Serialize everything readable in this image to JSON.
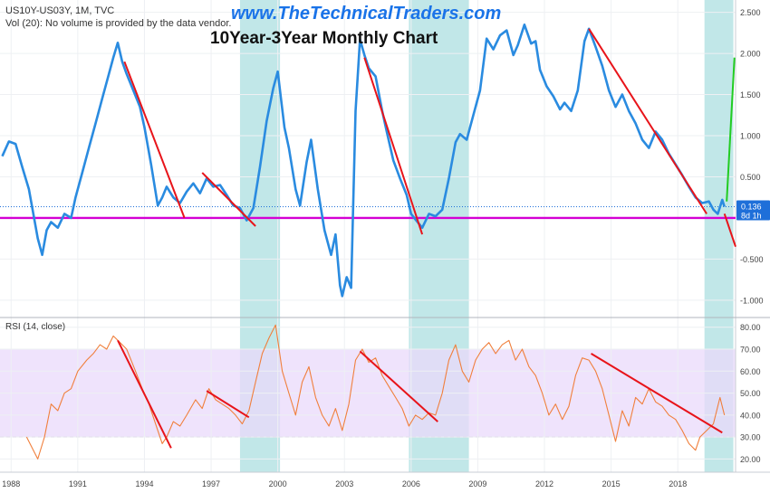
{
  "header": {
    "symbol_line": "US10Y-US03Y, 1M, TVC",
    "vol_line": "Vol (20): No volume is provided by the data vendor.",
    "website": "www.TheTechnicalTraders.com",
    "chart_title": "10Year-3Year Monthly Chart",
    "rsi_label": "RSI (14, close)"
  },
  "price_tag": {
    "value": "0.136",
    "countdown": "8d 1h"
  },
  "colors": {
    "spread_line": "#2a8be0",
    "rsi_line": "#f07f3c",
    "shade": "#9fdadb",
    "rsi_band": "#e9d9fb",
    "trend": "#e8141a",
    "projection_up": "#22cc22",
    "support": "#d400d4",
    "tag_bg": "#1e6fd9"
  },
  "chart_data": [
    {
      "type": "line",
      "name": "spread",
      "x_axis": {
        "min": 1987.5,
        "max": 2020.6,
        "ticks": [
          1988,
          1991,
          1994,
          1997,
          2000,
          2003,
          2006,
          2009,
          2012,
          2015,
          2018
        ]
      },
      "x_tick_labels": [
        "1988",
        "1991",
        "1994",
        "1997",
        "2000",
        "2003",
        "2006",
        "2009",
        "2012",
        "2015",
        "2018"
      ],
      "y_axis": {
        "min": -1.2,
        "max": 2.65,
        "ticks": [
          2.5,
          2.0,
          1.5,
          1.0,
          0.5,
          0.0,
          -0.5,
          -1.0
        ]
      },
      "y_tick_labels": [
        "2.500",
        "2.000",
        "1.500",
        "1.000",
        "0.500",
        "",
        "-0.500",
        "-1.000"
      ],
      "points": [
        [
          1987.6,
          0.75
        ],
        [
          1987.9,
          0.93
        ],
        [
          1988.2,
          0.9
        ],
        [
          1988.5,
          0.62
        ],
        [
          1988.8,
          0.35
        ],
        [
          1989.0,
          0.05
        ],
        [
          1989.2,
          -0.25
        ],
        [
          1989.4,
          -0.45
        ],
        [
          1989.6,
          -0.15
        ],
        [
          1989.8,
          -0.05
        ],
        [
          1990.1,
          -0.12
        ],
        [
          1990.4,
          0.05
        ],
        [
          1990.7,
          0.0
        ],
        [
          1990.9,
          0.25
        ],
        [
          1991.2,
          0.55
        ],
        [
          1991.5,
          0.85
        ],
        [
          1991.8,
          1.15
        ],
        [
          1992.1,
          1.45
        ],
        [
          1992.4,
          1.75
        ],
        [
          1992.6,
          1.95
        ],
        [
          1992.8,
          2.13
        ],
        [
          1993.0,
          1.9
        ],
        [
          1993.2,
          1.75
        ],
        [
          1993.5,
          1.55
        ],
        [
          1993.8,
          1.35
        ],
        [
          1994.0,
          1.1
        ],
        [
          1994.3,
          0.65
        ],
        [
          1994.6,
          0.15
        ],
        [
          1994.8,
          0.25
        ],
        [
          1995.0,
          0.38
        ],
        [
          1995.3,
          0.25
        ],
        [
          1995.6,
          0.18
        ],
        [
          1995.9,
          0.32
        ],
        [
          1996.2,
          0.42
        ],
        [
          1996.5,
          0.3
        ],
        [
          1996.8,
          0.48
        ],
        [
          1997.1,
          0.38
        ],
        [
          1997.4,
          0.4
        ],
        [
          1997.7,
          0.28
        ],
        [
          1998.0,
          0.15
        ],
        [
          1998.3,
          0.12
        ],
        [
          1998.6,
          -0.03
        ],
        [
          1998.9,
          0.12
        ],
        [
          1999.2,
          0.62
        ],
        [
          1999.5,
          1.18
        ],
        [
          1999.8,
          1.58
        ],
        [
          2000.0,
          1.78
        ],
        [
          2000.3,
          1.1
        ],
        [
          2000.5,
          0.85
        ],
        [
          2000.8,
          0.35
        ],
        [
          2001.0,
          0.15
        ],
        [
          2001.3,
          0.68
        ],
        [
          2001.5,
          0.95
        ],
        [
          2001.8,
          0.35
        ],
        [
          2002.1,
          -0.15
        ],
        [
          2002.4,
          -0.45
        ],
        [
          2002.6,
          -0.2
        ],
        [
          2002.8,
          -0.82
        ],
        [
          2002.9,
          -0.95
        ],
        [
          2003.1,
          -0.72
        ],
        [
          2003.3,
          -0.85
        ],
        [
          2003.5,
          1.3
        ],
        [
          2003.7,
          2.17
        ],
        [
          2003.9,
          1.98
        ],
        [
          2004.1,
          1.82
        ],
        [
          2004.4,
          1.72
        ],
        [
          2004.7,
          1.3
        ],
        [
          2004.9,
          1.05
        ],
        [
          2005.2,
          0.7
        ],
        [
          2005.5,
          0.48
        ],
        [
          2005.8,
          0.28
        ],
        [
          2006.0,
          0.05
        ],
        [
          2006.2,
          -0.02
        ],
        [
          2006.5,
          -0.12
        ],
        [
          2006.8,
          0.05
        ],
        [
          2007.1,
          0.02
        ],
        [
          2007.4,
          0.1
        ],
        [
          2007.7,
          0.48
        ],
        [
          2008.0,
          0.92
        ],
        [
          2008.2,
          1.02
        ],
        [
          2008.5,
          0.95
        ],
        [
          2008.8,
          1.25
        ],
        [
          2009.1,
          1.55
        ],
        [
          2009.4,
          2.18
        ],
        [
          2009.7,
          2.05
        ],
        [
          2010.0,
          2.22
        ],
        [
          2010.3,
          2.28
        ],
        [
          2010.6,
          1.98
        ],
        [
          2010.8,
          2.1
        ],
        [
          2011.1,
          2.35
        ],
        [
          2011.4,
          2.12
        ],
        [
          2011.6,
          2.15
        ],
        [
          2011.8,
          1.8
        ],
        [
          2012.1,
          1.6
        ],
        [
          2012.4,
          1.48
        ],
        [
          2012.7,
          1.32
        ],
        [
          2012.9,
          1.4
        ],
        [
          2013.2,
          1.3
        ],
        [
          2013.5,
          1.55
        ],
        [
          2013.8,
          2.15
        ],
        [
          2014.0,
          2.3
        ],
        [
          2014.3,
          2.08
        ],
        [
          2014.6,
          1.85
        ],
        [
          2014.9,
          1.55
        ],
        [
          2015.2,
          1.35
        ],
        [
          2015.5,
          1.5
        ],
        [
          2015.8,
          1.3
        ],
        [
          2016.1,
          1.15
        ],
        [
          2016.4,
          0.95
        ],
        [
          2016.7,
          0.85
        ],
        [
          2017.0,
          1.05
        ],
        [
          2017.3,
          0.95
        ],
        [
          2017.6,
          0.78
        ],
        [
          2017.9,
          0.65
        ],
        [
          2018.2,
          0.52
        ],
        [
          2018.5,
          0.38
        ],
        [
          2018.8,
          0.25
        ],
        [
          2019.1,
          0.18
        ],
        [
          2019.4,
          0.2
        ],
        [
          2019.6,
          0.1
        ],
        [
          2019.8,
          0.05
        ],
        [
          2020.0,
          0.22
        ],
        [
          2020.1,
          0.136
        ]
      ],
      "projection": {
        "color": "green",
        "points": [
          [
            2020.2,
            0.2
          ],
          [
            2020.55,
            1.95
          ]
        ]
      },
      "support_level": 0.0,
      "current_value": 0.136,
      "trendlines": [
        [
          [
            1993.1,
            1.9
          ],
          [
            1995.8,
            0.0
          ]
        ],
        [
          [
            1996.6,
            0.55
          ],
          [
            1999.0,
            -0.1
          ]
        ],
        [
          [
            2003.9,
            1.95
          ],
          [
            2006.5,
            -0.2
          ]
        ],
        [
          [
            2014.0,
            2.3
          ],
          [
            2019.3,
            0.05
          ]
        ],
        [
          [
            2020.1,
            0.05
          ],
          [
            2020.6,
            -0.35
          ]
        ]
      ],
      "shaded_periods": [
        [
          1998.3,
          2000.1
        ],
        [
          2005.9,
          2008.6
        ],
        [
          2019.2,
          2020.5
        ]
      ]
    },
    {
      "type": "line",
      "name": "RSI (14, close)",
      "x_axis": {
        "min": 1987.5,
        "max": 2020.6
      },
      "y_axis": {
        "min": 14,
        "max": 84,
        "ticks": [
          80,
          70,
          60,
          50,
          40,
          30,
          20
        ]
      },
      "y_tick_labels": [
        "80.00",
        "70.00",
        "60.00",
        "50.00",
        "40.00",
        "30.00",
        "20.00"
      ],
      "band": [
        30,
        70
      ],
      "points": [
        [
          1988.7,
          30
        ],
        [
          1989.0,
          24
        ],
        [
          1989.2,
          20
        ],
        [
          1989.5,
          30
        ],
        [
          1989.8,
          45
        ],
        [
          1990.1,
          42
        ],
        [
          1990.4,
          50
        ],
        [
          1990.7,
          52
        ],
        [
          1991.0,
          60
        ],
        [
          1991.4,
          65
        ],
        [
          1991.7,
          68
        ],
        [
          1992.0,
          72
        ],
        [
          1992.3,
          70
        ],
        [
          1992.6,
          76
        ],
        [
          1992.9,
          73
        ],
        [
          1993.2,
          70
        ],
        [
          1993.6,
          60
        ],
        [
          1993.9,
          52
        ],
        [
          1994.2,
          45
        ],
        [
          1994.6,
          33
        ],
        [
          1994.8,
          27
        ],
        [
          1995.0,
          30
        ],
        [
          1995.3,
          37
        ],
        [
          1995.6,
          35
        ],
        [
          1995.9,
          40
        ],
        [
          1996.3,
          47
        ],
        [
          1996.6,
          43
        ],
        [
          1996.9,
          52
        ],
        [
          1997.2,
          47
        ],
        [
          1997.5,
          45
        ],
        [
          1997.8,
          43
        ],
        [
          1998.1,
          40
        ],
        [
          1998.4,
          36
        ],
        [
          1998.7,
          42
        ],
        [
          1999.0,
          55
        ],
        [
          1999.3,
          68
        ],
        [
          1999.6,
          75
        ],
        [
          1999.9,
          81
        ],
        [
          2000.2,
          60
        ],
        [
          2000.5,
          50
        ],
        [
          2000.8,
          40
        ],
        [
          2001.1,
          55
        ],
        [
          2001.4,
          62
        ],
        [
          2001.7,
          48
        ],
        [
          2002.0,
          40
        ],
        [
          2002.3,
          35
        ],
        [
          2002.6,
          43
        ],
        [
          2002.9,
          33
        ],
        [
          2003.2,
          45
        ],
        [
          2003.5,
          65
        ],
        [
          2003.8,
          70
        ],
        [
          2004.1,
          64
        ],
        [
          2004.4,
          66
        ],
        [
          2004.7,
          58
        ],
        [
          2005.0,
          53
        ],
        [
          2005.3,
          48
        ],
        [
          2005.6,
          43
        ],
        [
          2005.9,
          35
        ],
        [
          2006.2,
          40
        ],
        [
          2006.5,
          38
        ],
        [
          2006.8,
          41
        ],
        [
          2007.1,
          40
        ],
        [
          2007.4,
          50
        ],
        [
          2007.7,
          65
        ],
        [
          2008.0,
          72
        ],
        [
          2008.3,
          60
        ],
        [
          2008.6,
          55
        ],
        [
          2008.9,
          65
        ],
        [
          2009.2,
          70
        ],
        [
          2009.5,
          73
        ],
        [
          2009.8,
          68
        ],
        [
          2010.1,
          72
        ],
        [
          2010.4,
          74
        ],
        [
          2010.7,
          65
        ],
        [
          2011.0,
          70
        ],
        [
          2011.3,
          62
        ],
        [
          2011.6,
          58
        ],
        [
          2011.9,
          50
        ],
        [
          2012.2,
          40
        ],
        [
          2012.5,
          45
        ],
        [
          2012.8,
          38
        ],
        [
          2013.1,
          44
        ],
        [
          2013.4,
          58
        ],
        [
          2013.7,
          66
        ],
        [
          2014.0,
          65
        ],
        [
          2014.3,
          60
        ],
        [
          2014.6,
          52
        ],
        [
          2014.9,
          40
        ],
        [
          2015.2,
          28
        ],
        [
          2015.5,
          42
        ],
        [
          2015.8,
          35
        ],
        [
          2016.1,
          48
        ],
        [
          2016.4,
          45
        ],
        [
          2016.7,
          52
        ],
        [
          2017.0,
          46
        ],
        [
          2017.3,
          44
        ],
        [
          2017.6,
          40
        ],
        [
          2017.9,
          38
        ],
        [
          2018.2,
          33
        ],
        [
          2018.5,
          27
        ],
        [
          2018.8,
          24
        ],
        [
          2019.0,
          30
        ],
        [
          2019.3,
          33
        ],
        [
          2019.6,
          36
        ],
        [
          2019.9,
          48
        ],
        [
          2020.1,
          40
        ]
      ],
      "trendlines": [
        [
          [
            1992.8,
            74
          ],
          [
            1995.2,
            25
          ]
        ],
        [
          [
            1996.8,
            51
          ],
          [
            1998.7,
            39
          ]
        ],
        [
          [
            2003.7,
            69
          ],
          [
            2007.2,
            37
          ]
        ],
        [
          [
            2014.1,
            68
          ],
          [
            2020.0,
            32
          ]
        ]
      ],
      "shaded_periods": [
        [
          1998.3,
          2000.1
        ],
        [
          2005.9,
          2008.6
        ],
        [
          2019.2,
          2020.5
        ]
      ]
    }
  ]
}
